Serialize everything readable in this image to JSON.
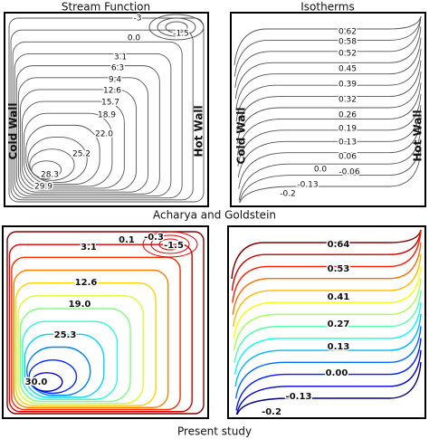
{
  "panels": [
    {
      "title": "Stream Function",
      "left_label": "Cold Wall",
      "right_label": "Hot Wall",
      "contour_labels": [
        "-3",
        "-1.5",
        "0.0",
        "3.1",
        "6.3",
        "9.4",
        "12.6",
        "15.7",
        "18.9",
        "22.0",
        "25.2",
        "28.3",
        "29.9"
      ]
    },
    {
      "title": "Isotherms",
      "left_label": "Cold Wall",
      "right_label": "Hot Wall",
      "contour_labels": [
        "0.62",
        "0.58",
        "0.52",
        "0.45",
        "0.39",
        "0.32",
        "0.26",
        "0.19",
        "0.13",
        "0.06",
        "0.0",
        "-0.06",
        "-0.13",
        "-0.2"
      ]
    },
    {
      "contour_labels": [
        "0.1",
        "-0.3",
        "-1.5",
        "3.1",
        "12.6",
        "19.0",
        "25.3",
        "30.0"
      ]
    },
    {
      "contour_labels": [
        "0.64",
        "0.53",
        "0.41",
        "0.27",
        "0.13",
        "0.00",
        "-0.13",
        "-0.2"
      ]
    }
  ],
  "captions": [
    "Acharya and Goldstein",
    "Present study"
  ]
}
